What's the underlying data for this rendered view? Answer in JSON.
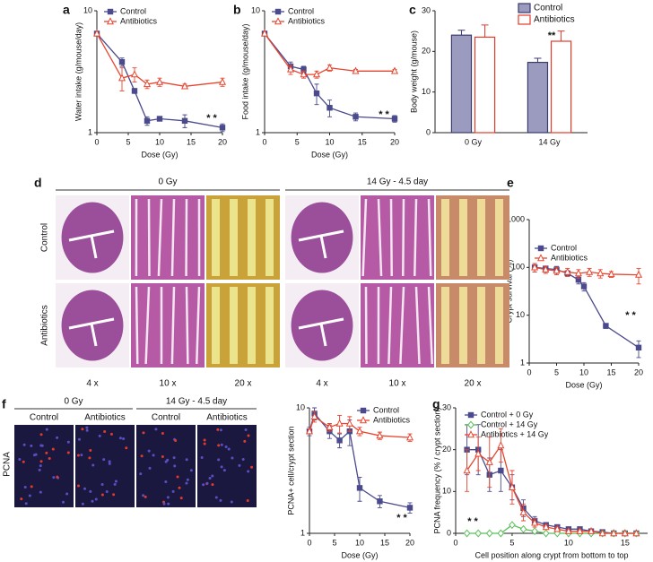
{
  "chart_data": [
    {
      "type": "line",
      "label": "a",
      "xlabel": "Dose (Gy)",
      "ylabel": "Water intake (g/mouse/day)",
      "log_y": true,
      "x": [
        0,
        4,
        6,
        8,
        10,
        14,
        20
      ],
      "xlim": [
        0,
        20
      ],
      "xticks": [
        0,
        5,
        10,
        15,
        20
      ],
      "ylim": [
        1,
        10
      ],
      "yticks": [
        1,
        10
      ],
      "series": [
        {
          "name": "Control",
          "color": "#4a4a8c",
          "marker": "square",
          "values": [
            6.5,
            3.8,
            2.2,
            1.25,
            1.3,
            1.25,
            1.1
          ],
          "errors": [
            0,
            0.3,
            0.1,
            0.1,
            0.05,
            0.15,
            0.08
          ]
        },
        {
          "name": "Antibiotics",
          "color": "#e8452f",
          "marker": "triangle",
          "values": [
            6.5,
            2.8,
            3.0,
            2.5,
            2.6,
            2.4,
            2.6
          ],
          "errors": [
            0,
            0.6,
            0.4,
            0.2,
            0.2,
            0.1,
            0.2
          ]
        }
      ],
      "annotation": "* *"
    },
    {
      "type": "line",
      "label": "b",
      "xlabel": "Dose (Gy)",
      "ylabel": "Food intake (g/mouse/day)",
      "log_y": true,
      "x": [
        0,
        4,
        6,
        8,
        10,
        14,
        20
      ],
      "xlim": [
        0,
        20
      ],
      "xticks": [
        0,
        5,
        10,
        15,
        20
      ],
      "ylim": [
        1,
        10
      ],
      "yticks": [
        1,
        10
      ],
      "series": [
        {
          "name": "Control",
          "color": "#4a4a8c",
          "marker": "square",
          "values": [
            6.5,
            3.5,
            3.3,
            2.1,
            1.6,
            1.35,
            1.3
          ],
          "errors": [
            0,
            0.3,
            0.2,
            0.4,
            0.25,
            0.1,
            0.08
          ]
        },
        {
          "name": "Antibiotics",
          "color": "#e8452f",
          "marker": "triangle",
          "values": [
            6.5,
            3.3,
            3.0,
            3.0,
            3.4,
            3.2,
            3.2
          ],
          "errors": [
            0,
            0.3,
            0.2,
            0.2,
            0.2,
            0.1,
            0.1
          ]
        }
      ],
      "annotation": "* *"
    },
    {
      "type": "bar",
      "label": "c",
      "ylabel": "Body weight (g/mouse)",
      "categories": [
        "0 Gy",
        "14 Gy"
      ],
      "ylim": [
        0,
        30
      ],
      "yticks": [
        0,
        10,
        20,
        30
      ],
      "series": [
        {
          "name": "Control",
          "color": "#3a3a6e",
          "fill": "#9b9bbf",
          "values": [
            24,
            17.3
          ],
          "errors": [
            1.2,
            1
          ]
        },
        {
          "name": "Antibiotics",
          "color": "#e23b2a",
          "fill": "#ffffff",
          "values": [
            23.5,
            22.5
          ],
          "errors": [
            3,
            2.5
          ]
        }
      ],
      "annotation": "**"
    },
    {
      "type": "line",
      "label": "e",
      "xlabel": "Dose (Gy)",
      "ylabel": "Crypt survival (%)",
      "log_y": true,
      "xlim": [
        0,
        20
      ],
      "xticks": [
        0,
        5,
        10,
        15,
        20
      ],
      "ylim": [
        1,
        1000
      ],
      "yticks": [
        1,
        10,
        100,
        1000
      ],
      "series": [
        {
          "name": "Control",
          "color": "#4a4a8c",
          "marker": "square",
          "x": [
            1,
            3,
            5,
            7,
            9,
            10,
            14,
            20
          ],
          "values": [
            100,
            95,
            90,
            75,
            55,
            40,
            6,
            2.1
          ],
          "errors": [
            20,
            10,
            15,
            10,
            10,
            8,
            0.7,
            0.8
          ]
        },
        {
          "name": "Antibiotics",
          "color": "#e8452f",
          "marker": "triangle",
          "x": [
            1,
            3,
            5,
            7,
            9,
            11,
            13,
            15,
            20
          ],
          "values": [
            100,
            90,
            85,
            80,
            75,
            80,
            75,
            72,
            70
          ],
          "errors": [
            20,
            15,
            15,
            15,
            15,
            15,
            15,
            10,
            25
          ]
        }
      ],
      "annotation": "* *"
    },
    {
      "type": "line",
      "label": "",
      "xlabel": "Dose (Gy)",
      "ylabel": "PCNA+ cell/crypt section",
      "log_y": true,
      "x": [
        0,
        1,
        4,
        6,
        8,
        10,
        14,
        20
      ],
      "xlim": [
        0,
        20
      ],
      "xticks": [
        0,
        5,
        10,
        15,
        20
      ],
      "ylim": [
        1,
        10
      ],
      "yticks": [
        1,
        10
      ],
      "series": [
        {
          "name": "Control",
          "color": "#4a4a8c",
          "marker": "square",
          "values": [
            6.5,
            9,
            6.5,
            5.5,
            6.5,
            2.3,
            1.8,
            1.6
          ],
          "errors": [
            0.5,
            1,
            0.8,
            0.7,
            1.5,
            0.5,
            0.2,
            0.15
          ]
        },
        {
          "name": "Antibiotics",
          "color": "#e8452f",
          "marker": "triangle",
          "values": [
            6.5,
            8.5,
            7,
            7.5,
            7.5,
            6.5,
            6,
            5.8
          ],
          "errors": [
            0.3,
            0.8,
            0.5,
            1.2,
            1,
            0.5,
            0.4,
            0.4
          ]
        }
      ],
      "annotation": "* *"
    },
    {
      "type": "line",
      "label": "g",
      "xlabel": "Cell position along crypt from bottom to top",
      "ylabel": "PCNA frequency (% / crypt section)",
      "x": [
        1,
        2,
        3,
        4,
        5,
        6,
        7,
        8,
        9,
        10,
        11,
        12,
        13,
        14,
        15,
        16
      ],
      "xlim": [
        0,
        17
      ],
      "xticks": [
        0,
        5,
        10,
        15
      ],
      "ylim": [
        0,
        30
      ],
      "yticks": [
        0,
        10,
        20,
        30
      ],
      "series": [
        {
          "name": "Control + 0 Gy",
          "color": "#4a4a8c",
          "marker": "square",
          "values": [
            20,
            20,
            14,
            15,
            11,
            6,
            3,
            2,
            1.5,
            1,
            1,
            0.5,
            0.3,
            0,
            0,
            0
          ],
          "errors": [
            6,
            6,
            4,
            5,
            3,
            2,
            1,
            0.5,
            0.5,
            0.3,
            0.3,
            0.2,
            0.2,
            0,
            0,
            0
          ]
        },
        {
          "name": "Control + 14 Gy",
          "color": "#5cbf5c",
          "marker": "diamond",
          "values": [
            0,
            0,
            0,
            0,
            2,
            1,
            0.5,
            0,
            0,
            0,
            0,
            0,
            0,
            0,
            0,
            0
          ]
        },
        {
          "name": "Antibiotics + 14 Gy",
          "color": "#e8452f",
          "marker": "triangle",
          "values": [
            15,
            19,
            17,
            21,
            11,
            5,
            2.5,
            1.5,
            1,
            0.5,
            0.5,
            0.5,
            0,
            0,
            0,
            0
          ],
          "errors": [
            5,
            4,
            6,
            4,
            4,
            2,
            1,
            0.5,
            0.5,
            0.3,
            0.3,
            0.2,
            0,
            0,
            0,
            0
          ]
        }
      ],
      "annotation": "* *"
    }
  ],
  "histology": {
    "label": "d",
    "groups": [
      "0 Gy",
      "14 Gy - 4.5 day"
    ],
    "rows": [
      "Control",
      "Antibiotics"
    ],
    "magnifications": [
      "4 x",
      "10 x",
      "20 x",
      "4 x",
      "10 x",
      "20 x"
    ]
  },
  "pcna_images": {
    "label": "f",
    "groups": [
      "0 Gy",
      "14 Gy - 4.5 day"
    ],
    "columns": [
      "Control",
      "Antibiotics",
      "Control",
      "Antibiotics"
    ],
    "stain": "PCNA"
  }
}
